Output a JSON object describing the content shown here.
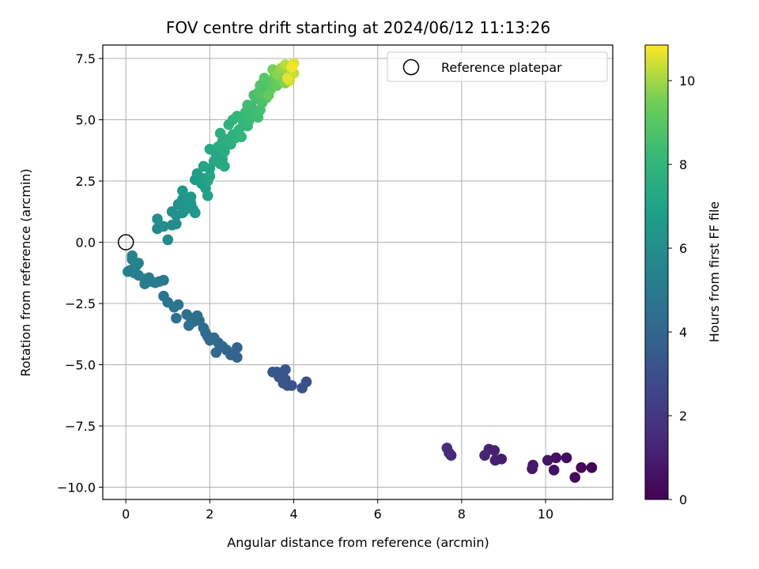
{
  "chart_data": {
    "type": "scatter",
    "title": "FOV centre drift starting at 2024/06/12 11:13:26",
    "xlabel": "Angular distance from reference (arcmin)",
    "ylabel": "Rotation from reference (arcmin)",
    "xlim": [
      -0.55,
      11.6
    ],
    "ylim": [
      -10.5,
      8.05
    ],
    "xticks": [
      0,
      2,
      4,
      6,
      8,
      10
    ],
    "xtick_labels": [
      "0",
      "2",
      "4",
      "6",
      "8",
      "10"
    ],
    "yticks": [
      -10.0,
      -7.5,
      -5.0,
      -2.5,
      0.0,
      2.5,
      5.0,
      7.5
    ],
    "ytick_labels": [
      "−10.0",
      "−7.5",
      "−5.0",
      "−2.5",
      "0.0",
      "2.5",
      "5.0",
      "7.5"
    ],
    "grid": true,
    "legend": {
      "placement": "top-right",
      "entries": [
        "Reference platepar"
      ]
    },
    "reference_point": {
      "x": 0,
      "y": 0,
      "label": "Reference platepar"
    },
    "colorbar": {
      "label": "Hours from first FF file",
      "colormap": "viridis",
      "range": [
        0,
        10.85
      ],
      "ticks": [
        0,
        2,
        4,
        6,
        8,
        10
      ],
      "tick_labels": [
        "0",
        "2",
        "4",
        "6",
        "8",
        "10"
      ]
    },
    "points": [
      {
        "x": 11.1,
        "y": -9.2,
        "c": 0.1
      },
      {
        "x": 10.85,
        "y": -9.2,
        "c": 0.2
      },
      {
        "x": 10.7,
        "y": -9.6,
        "c": 0.3
      },
      {
        "x": 10.5,
        "y": -8.8,
        "c": 0.4
      },
      {
        "x": 10.25,
        "y": -8.8,
        "c": 0.5
      },
      {
        "x": 10.2,
        "y": -9.3,
        "c": 0.55
      },
      {
        "x": 10.05,
        "y": -8.9,
        "c": 0.65
      },
      {
        "x": 9.7,
        "y": -9.1,
        "c": 0.75
      },
      {
        "x": 9.68,
        "y": -9.25,
        "c": 0.8
      },
      {
        "x": 8.95,
        "y": -8.85,
        "c": 1.0
      },
      {
        "x": 8.8,
        "y": -8.9,
        "c": 1.05
      },
      {
        "x": 8.78,
        "y": -8.5,
        "c": 1.1
      },
      {
        "x": 8.65,
        "y": -8.45,
        "c": 1.15
      },
      {
        "x": 8.55,
        "y": -8.7,
        "c": 1.2
      },
      {
        "x": 7.75,
        "y": -8.7,
        "c": 1.5
      },
      {
        "x": 7.7,
        "y": -8.6,
        "c": 1.55
      },
      {
        "x": 7.65,
        "y": -8.4,
        "c": 1.6
      },
      {
        "x": 4.3,
        "y": -5.7,
        "c": 3.0
      },
      {
        "x": 4.2,
        "y": -5.95,
        "c": 3.05
      },
      {
        "x": 3.95,
        "y": -5.85,
        "c": 3.1
      },
      {
        "x": 3.85,
        "y": -5.85,
        "c": 3.15
      },
      {
        "x": 3.8,
        "y": -5.6,
        "c": 3.2
      },
      {
        "x": 3.75,
        "y": -5.75,
        "c": 3.2
      },
      {
        "x": 3.8,
        "y": -5.2,
        "c": 3.25
      },
      {
        "x": 3.65,
        "y": -5.5,
        "c": 3.3
      },
      {
        "x": 3.6,
        "y": -5.3,
        "c": 3.3
      },
      {
        "x": 3.5,
        "y": -5.3,
        "c": 3.35
      },
      {
        "x": 2.65,
        "y": -4.7,
        "c": 3.9
      },
      {
        "x": 2.65,
        "y": -4.3,
        "c": 3.9
      },
      {
        "x": 2.5,
        "y": -4.6,
        "c": 3.95
      },
      {
        "x": 2.4,
        "y": -4.4,
        "c": 4.0
      },
      {
        "x": 2.3,
        "y": -4.25,
        "c": 4.05
      },
      {
        "x": 2.2,
        "y": -4.1,
        "c": 4.1
      },
      {
        "x": 2.15,
        "y": -4.5,
        "c": 4.1
      },
      {
        "x": 2.1,
        "y": -3.9,
        "c": 4.15
      },
      {
        "x": 2.0,
        "y": -4.0,
        "c": 4.2
      },
      {
        "x": 1.95,
        "y": -3.85,
        "c": 4.2
      },
      {
        "x": 1.9,
        "y": -3.7,
        "c": 4.25
      },
      {
        "x": 1.85,
        "y": -3.5,
        "c": 4.3
      },
      {
        "x": 1.75,
        "y": -3.2,
        "c": 4.35
      },
      {
        "x": 1.7,
        "y": -3.0,
        "c": 4.4
      },
      {
        "x": 1.6,
        "y": -3.25,
        "c": 4.45
      },
      {
        "x": 1.55,
        "y": -3.1,
        "c": 4.45
      },
      {
        "x": 1.5,
        "y": -3.4,
        "c": 4.5
      },
      {
        "x": 1.45,
        "y": -2.95,
        "c": 4.5
      },
      {
        "x": 1.2,
        "y": -3.1,
        "c": 4.6
      },
      {
        "x": 1.25,
        "y": -2.55,
        "c": 4.65
      },
      {
        "x": 1.15,
        "y": -2.65,
        "c": 4.7
      },
      {
        "x": 1.0,
        "y": -2.45,
        "c": 4.75
      },
      {
        "x": 0.9,
        "y": -2.2,
        "c": 4.8
      },
      {
        "x": 0.9,
        "y": -1.55,
        "c": 4.9
      },
      {
        "x": 0.8,
        "y": -1.6,
        "c": 4.95
      },
      {
        "x": 0.7,
        "y": -1.65,
        "c": 5.0
      },
      {
        "x": 0.6,
        "y": -1.6,
        "c": 5.05
      },
      {
        "x": 0.55,
        "y": -1.45,
        "c": 5.05
      },
      {
        "x": 0.45,
        "y": -1.5,
        "c": 5.1
      },
      {
        "x": 0.45,
        "y": -1.7,
        "c": 5.1
      },
      {
        "x": 0.3,
        "y": -1.35,
        "c": 5.15
      },
      {
        "x": 0.2,
        "y": -1.25,
        "c": 5.2
      },
      {
        "x": 0.1,
        "y": -1.15,
        "c": 5.25
      },
      {
        "x": 0.05,
        "y": -1.2,
        "c": 5.25
      },
      {
        "x": 0.2,
        "y": -1.05,
        "c": 5.3
      },
      {
        "x": 0.3,
        "y": -0.85,
        "c": 5.35
      },
      {
        "x": 0.15,
        "y": -0.7,
        "c": 5.4
      },
      {
        "x": 0.25,
        "y": -0.95,
        "c": 5.4
      },
      {
        "x": 0.15,
        "y": -0.55,
        "c": 5.45
      },
      {
        "x": 1.0,
        "y": 0.1,
        "c": 5.8
      },
      {
        "x": 0.75,
        "y": 0.55,
        "c": 5.85
      },
      {
        "x": 0.75,
        "y": 0.95,
        "c": 5.9
      },
      {
        "x": 0.9,
        "y": 0.65,
        "c": 5.95
      },
      {
        "x": 1.1,
        "y": 0.7,
        "c": 6.0
      },
      {
        "x": 1.2,
        "y": 0.75,
        "c": 6.05
      },
      {
        "x": 1.1,
        "y": 1.25,
        "c": 6.1
      },
      {
        "x": 1.2,
        "y": 1.1,
        "c": 6.15
      },
      {
        "x": 1.25,
        "y": 1.55,
        "c": 6.2
      },
      {
        "x": 1.35,
        "y": 1.2,
        "c": 6.25
      },
      {
        "x": 1.35,
        "y": 1.75,
        "c": 6.3
      },
      {
        "x": 1.4,
        "y": 1.3,
        "c": 6.35
      },
      {
        "x": 1.5,
        "y": 1.5,
        "c": 6.4
      },
      {
        "x": 1.55,
        "y": 1.6,
        "c": 6.45
      },
      {
        "x": 1.6,
        "y": 1.35,
        "c": 6.45
      },
      {
        "x": 1.65,
        "y": 1.2,
        "c": 6.5
      },
      {
        "x": 1.35,
        "y": 2.1,
        "c": 6.5
      },
      {
        "x": 1.55,
        "y": 1.85,
        "c": 6.55
      },
      {
        "x": 1.65,
        "y": 2.55,
        "c": 6.7
      },
      {
        "x": 1.7,
        "y": 2.8,
        "c": 6.75
      },
      {
        "x": 1.8,
        "y": 2.4,
        "c": 6.8
      },
      {
        "x": 1.85,
        "y": 2.6,
        "c": 6.85
      },
      {
        "x": 1.9,
        "y": 2.2,
        "c": 6.9
      },
      {
        "x": 1.95,
        "y": 1.9,
        "c": 6.95
      },
      {
        "x": 1.95,
        "y": 2.5,
        "c": 7.0
      },
      {
        "x": 2.0,
        "y": 3.0,
        "c": 7.05
      },
      {
        "x": 2.0,
        "y": 2.7,
        "c": 7.1
      },
      {
        "x": 1.85,
        "y": 3.1,
        "c": 7.1
      },
      {
        "x": 2.1,
        "y": 3.3,
        "c": 7.15
      },
      {
        "x": 2.15,
        "y": 3.6,
        "c": 7.2
      },
      {
        "x": 2.0,
        "y": 3.8,
        "c": 7.25
      },
      {
        "x": 2.25,
        "y": 3.2,
        "c": 7.3
      },
      {
        "x": 2.3,
        "y": 3.4,
        "c": 7.35
      },
      {
        "x": 2.35,
        "y": 3.1,
        "c": 7.4
      },
      {
        "x": 2.2,
        "y": 3.9,
        "c": 7.45
      },
      {
        "x": 2.3,
        "y": 4.1,
        "c": 7.5
      },
      {
        "x": 2.35,
        "y": 3.7,
        "c": 7.55
      },
      {
        "x": 2.4,
        "y": 4.2,
        "c": 7.6
      },
      {
        "x": 2.25,
        "y": 4.45,
        "c": 7.65
      },
      {
        "x": 2.5,
        "y": 4.0,
        "c": 7.7
      },
      {
        "x": 2.55,
        "y": 4.4,
        "c": 7.75
      },
      {
        "x": 2.45,
        "y": 4.8,
        "c": 7.8
      },
      {
        "x": 2.6,
        "y": 4.25,
        "c": 7.85
      },
      {
        "x": 2.55,
        "y": 5.0,
        "c": 7.9
      },
      {
        "x": 2.7,
        "y": 4.6,
        "c": 7.95
      },
      {
        "x": 2.75,
        "y": 4.3,
        "c": 8.0
      },
      {
        "x": 2.8,
        "y": 4.9,
        "c": 8.05
      },
      {
        "x": 2.65,
        "y": 5.15,
        "c": 8.1
      },
      {
        "x": 2.9,
        "y": 4.75,
        "c": 8.15
      },
      {
        "x": 2.85,
        "y": 5.3,
        "c": 8.2
      },
      {
        "x": 2.95,
        "y": 5.0,
        "c": 8.25
      },
      {
        "x": 3.0,
        "y": 5.5,
        "c": 8.3
      },
      {
        "x": 3.05,
        "y": 5.2,
        "c": 8.35
      },
      {
        "x": 2.9,
        "y": 5.6,
        "c": 8.4
      },
      {
        "x": 3.1,
        "y": 5.85,
        "c": 8.45
      },
      {
        "x": 3.15,
        "y": 5.1,
        "c": 8.5
      },
      {
        "x": 3.2,
        "y": 5.4,
        "c": 8.55
      },
      {
        "x": 3.05,
        "y": 6.0,
        "c": 8.6
      },
      {
        "x": 3.25,
        "y": 5.7,
        "c": 8.65
      },
      {
        "x": 3.3,
        "y": 6.2,
        "c": 8.7
      },
      {
        "x": 3.2,
        "y": 6.4,
        "c": 8.75
      },
      {
        "x": 3.35,
        "y": 5.9,
        "c": 8.8
      },
      {
        "x": 3.15,
        "y": 6.1,
        "c": 8.85
      },
      {
        "x": 3.4,
        "y": 6.5,
        "c": 8.9
      },
      {
        "x": 3.3,
        "y": 6.7,
        "c": 8.95
      },
      {
        "x": 3.45,
        "y": 6.25,
        "c": 9.0
      },
      {
        "x": 3.5,
        "y": 6.55,
        "c": 9.1
      },
      {
        "x": 3.55,
        "y": 6.8,
        "c": 9.2
      },
      {
        "x": 3.4,
        "y": 6.0,
        "c": 9.25
      },
      {
        "x": 3.6,
        "y": 6.4,
        "c": 9.3
      },
      {
        "x": 3.65,
        "y": 6.95,
        "c": 9.4
      },
      {
        "x": 3.7,
        "y": 6.6,
        "c": 9.5
      },
      {
        "x": 3.5,
        "y": 7.05,
        "c": 9.55
      },
      {
        "x": 3.75,
        "y": 6.75,
        "c": 9.6
      },
      {
        "x": 3.8,
        "y": 6.5,
        "c": 9.7
      },
      {
        "x": 3.6,
        "y": 6.85,
        "c": 9.75
      },
      {
        "x": 3.85,
        "y": 7.0,
        "c": 9.8
      },
      {
        "x": 3.7,
        "y": 7.1,
        "c": 9.9
      },
      {
        "x": 3.9,
        "y": 6.8,
        "c": 10.0
      },
      {
        "x": 3.95,
        "y": 7.05,
        "c": 10.1
      },
      {
        "x": 3.8,
        "y": 7.25,
        "c": 10.2
      },
      {
        "x": 4.0,
        "y": 6.9,
        "c": 10.3
      },
      {
        "x": 3.9,
        "y": 6.6,
        "c": 10.4
      },
      {
        "x": 4.0,
        "y": 7.3,
        "c": 10.5
      },
      {
        "x": 3.85,
        "y": 6.7,
        "c": 10.6
      },
      {
        "x": 3.95,
        "y": 7.15,
        "c": 10.75
      }
    ]
  }
}
